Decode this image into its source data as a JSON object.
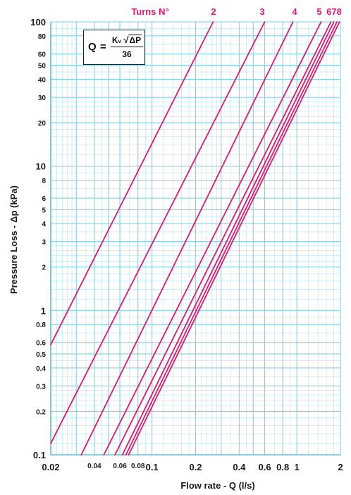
{
  "chart_data": {
    "type": "line",
    "title": "",
    "xlabel": "Flow rate - Q (l/s)",
    "ylabel": "Pressure Loss - Δp (kPa)",
    "xscale": "log",
    "yscale": "log",
    "xlim": [
      0.02,
      2
    ],
    "ylim": [
      0.1,
      100
    ],
    "grid": true,
    "legend_title": "Turns N°",
    "x_ticks": [
      0.02,
      0.04,
      0.06,
      0.08,
      0.1,
      0.2,
      0.4,
      0.6,
      0.8,
      1,
      2
    ],
    "x_tick_labels": [
      "0.02",
      "0.04",
      "0.06",
      "0.08",
      "0.1",
      "0.2",
      "0.4",
      "0.6",
      "0.8",
      "1",
      "2"
    ],
    "y_ticks": [
      0.1,
      0.2,
      0.3,
      0.4,
      0.5,
      0.6,
      0.8,
      1,
      2,
      3,
      4,
      5,
      6,
      8,
      10,
      20,
      30,
      40,
      50,
      60,
      80,
      100
    ],
    "y_tick_labels": [
      "0.1",
      "0.2",
      "0.3",
      "0.4",
      "0.5",
      "0.6",
      "0.8",
      "1",
      "2",
      "3",
      "4",
      "5",
      "6",
      "8",
      "10",
      "20",
      "30",
      "40",
      "50",
      "60",
      "80",
      "100"
    ],
    "line_color": "#d81b72",
    "grid_color": "#7fd3e6",
    "series": [
      {
        "label": "",
        "points": [
          [
            0.02,
            0.58
          ],
          [
            0.264,
            100
          ]
        ]
      },
      {
        "label": "2",
        "points": [
          [
            0.02,
            0.12
          ],
          [
            0.6,
            100
          ]
        ]
      },
      {
        "label": "3",
        "points": [
          [
            0.0325,
            0.1
          ],
          [
            0.94,
            100
          ]
        ]
      },
      {
        "label": "4",
        "points": [
          [
            0.0465,
            0.1
          ],
          [
            1.47,
            100
          ]
        ]
      },
      {
        "label": "5",
        "points": [
          [
            0.0555,
            0.1
          ],
          [
            1.72,
            100
          ]
        ]
      },
      {
        "label": "6",
        "points": [
          [
            0.0625,
            0.1
          ],
          [
            1.8,
            100
          ]
        ]
      },
      {
        "label": "7",
        "points": [
          [
            0.066,
            0.1
          ],
          [
            1.89,
            100
          ]
        ]
      },
      {
        "label": "8",
        "points": [
          [
            0.069,
            0.1
          ],
          [
            1.97,
            100
          ]
        ]
      }
    ],
    "series_labels_display": [
      "2",
      "3",
      "4",
      "5",
      "678"
    ]
  },
  "formula": {
    "lhs": "Q",
    "eq": "=",
    "kv": "K",
    "kv_sub": "v",
    "root": "√",
    "delta_p": "ΔP",
    "denominator": "36"
  }
}
